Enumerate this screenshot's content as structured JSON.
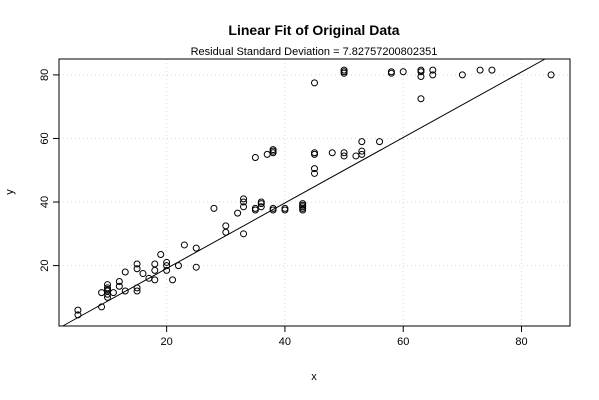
{
  "chart_data": {
    "type": "scatter",
    "title": "Linear Fit of Original Data",
    "subtitle": "Residual Standard Deviation =  7.82757200802351",
    "xlabel": "x",
    "ylabel": "y",
    "xlim": [
      1.8,
      88.2
    ],
    "ylim": [
      1.0,
      85.0
    ],
    "xticks": [
      20,
      40,
      60,
      80
    ],
    "yticks": [
      20,
      40,
      60,
      80
    ],
    "grid": true,
    "fit_line": {
      "slope": 1.03,
      "intercept": -1.5
    },
    "colors": {
      "points": "#000000",
      "line": "#000000",
      "grid": "#d9d9d9"
    },
    "points": [
      [
        5,
        4.5
      ],
      [
        5,
        6
      ],
      [
        9,
        7
      ],
      [
        9,
        11.5
      ],
      [
        10,
        10
      ],
      [
        10,
        11
      ],
      [
        10,
        12
      ],
      [
        10,
        12.5
      ],
      [
        10,
        13
      ],
      [
        10,
        14
      ],
      [
        11,
        11.5
      ],
      [
        12,
        13.5
      ],
      [
        12,
        15
      ],
      [
        13,
        12
      ],
      [
        13,
        18
      ],
      [
        15,
        12
      ],
      [
        15,
        13
      ],
      [
        15,
        19
      ],
      [
        15,
        20.5
      ],
      [
        16,
        17.5
      ],
      [
        17,
        16
      ],
      [
        18,
        15.5
      ],
      [
        18,
        18.5
      ],
      [
        18,
        20.5
      ],
      [
        19,
        23.5
      ],
      [
        20,
        18.5
      ],
      [
        20,
        20
      ],
      [
        20,
        21
      ],
      [
        21,
        15.5
      ],
      [
        22,
        20
      ],
      [
        23,
        26.5
      ],
      [
        25,
        19.5
      ],
      [
        25,
        25.5
      ],
      [
        28,
        38
      ],
      [
        30,
        30.5
      ],
      [
        30,
        32.5
      ],
      [
        32,
        36.5
      ],
      [
        33,
        30
      ],
      [
        33,
        38.5
      ],
      [
        33,
        40
      ],
      [
        33,
        41
      ],
      [
        35,
        37.5
      ],
      [
        35,
        38
      ],
      [
        35,
        54
      ],
      [
        36,
        38.5
      ],
      [
        36,
        39.5
      ],
      [
        36,
        40
      ],
      [
        37,
        55
      ],
      [
        38,
        37.5
      ],
      [
        38,
        38
      ],
      [
        38,
        55.5
      ],
      [
        38,
        56
      ],
      [
        38,
        56.5
      ],
      [
        40,
        37.5
      ],
      [
        40,
        38
      ],
      [
        43,
        37.5
      ],
      [
        43,
        38
      ],
      [
        43,
        38.5
      ],
      [
        43,
        39
      ],
      [
        43,
        39.5
      ],
      [
        45,
        49
      ],
      [
        45,
        50.5
      ],
      [
        45,
        55
      ],
      [
        45,
        55.5
      ],
      [
        45,
        77.5
      ],
      [
        48,
        55.5
      ],
      [
        50,
        54.5
      ],
      [
        50,
        55.5
      ],
      [
        50,
        80.5
      ],
      [
        50,
        81
      ],
      [
        50,
        81.5
      ],
      [
        52,
        54.5
      ],
      [
        53,
        55
      ],
      [
        53,
        56
      ],
      [
        53,
        59
      ],
      [
        56,
        59
      ],
      [
        58,
        80.5
      ],
      [
        58,
        81
      ],
      [
        60,
        81
      ],
      [
        63,
        72.5
      ],
      [
        63,
        79.5
      ],
      [
        63,
        81
      ],
      [
        63,
        81.5
      ],
      [
        65,
        80
      ],
      [
        65,
        81.5
      ],
      [
        70,
        80
      ],
      [
        73,
        81.5
      ],
      [
        75,
        81.5
      ],
      [
        85,
        80
      ]
    ]
  }
}
